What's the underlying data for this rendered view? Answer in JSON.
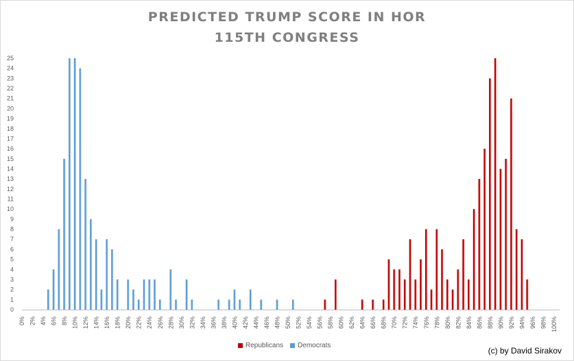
{
  "chart_data": {
    "type": "bar",
    "title_lines": [
      "PREDICTED TRUMP SCORE IN HOR",
      "115TH CONGRESS"
    ],
    "xlabel": "",
    "ylabel": "",
    "ylim": [
      0,
      25
    ],
    "yticks": [
      0,
      1,
      2,
      3,
      4,
      5,
      6,
      7,
      8,
      9,
      10,
      11,
      12,
      13,
      14,
      15,
      16,
      17,
      18,
      19,
      20,
      21,
      22,
      23,
      24,
      25
    ],
    "xticks": [
      "0%",
      "2%",
      "4%",
      "6%",
      "8%",
      "10%",
      "12%",
      "14%",
      "16%",
      "18%",
      "20%",
      "22%",
      "24%",
      "26%",
      "28%",
      "30%",
      "32%",
      "34%",
      "36%",
      "38%",
      "40%",
      "42%",
      "44%",
      "46%",
      "48%",
      "50%",
      "52%",
      "54%",
      "56%",
      "58%",
      "60%",
      "62%",
      "64%",
      "66%",
      "68%",
      "70%",
      "72%",
      "74%",
      "76%",
      "78%",
      "80%",
      "82%",
      "84%",
      "86%",
      "88%",
      "90%",
      "92%",
      "94%",
      "96%",
      "98%",
      "100%"
    ],
    "grid": false,
    "legend_position": "bottom",
    "series": [
      {
        "name": "Republicans",
        "color": "#c00000",
        "points": [
          [
            57,
            1
          ],
          [
            59,
            3
          ],
          [
            64,
            1
          ],
          [
            66,
            1
          ],
          [
            68,
            1
          ],
          [
            69,
            5
          ],
          [
            70,
            4
          ],
          [
            71,
            4
          ],
          [
            72,
            3
          ],
          [
            73,
            7
          ],
          [
            74,
            3
          ],
          [
            75,
            5
          ],
          [
            76,
            8
          ],
          [
            77,
            2
          ],
          [
            78,
            8
          ],
          [
            79,
            6
          ],
          [
            80,
            3
          ],
          [
            81,
            2
          ],
          [
            82,
            4
          ],
          [
            83,
            7
          ],
          [
            84,
            3
          ],
          [
            85,
            10
          ],
          [
            86,
            13
          ],
          [
            87,
            16
          ],
          [
            88,
            23
          ],
          [
            89,
            25
          ],
          [
            90,
            14
          ],
          [
            91,
            15
          ],
          [
            92,
            21
          ],
          [
            93,
            8
          ],
          [
            94,
            7
          ],
          [
            95,
            3
          ]
        ]
      },
      {
        "name": "Democrats",
        "color": "#5b9bd5",
        "points": [
          [
            5,
            2
          ],
          [
            6,
            4
          ],
          [
            7,
            8
          ],
          [
            8,
            15
          ],
          [
            9,
            25
          ],
          [
            10,
            25
          ],
          [
            11,
            24
          ],
          [
            12,
            13
          ],
          [
            13,
            9
          ],
          [
            14,
            7
          ],
          [
            15,
            2
          ],
          [
            16,
            7
          ],
          [
            17,
            6
          ],
          [
            18,
            3
          ],
          [
            19,
            0
          ],
          [
            20,
            3
          ],
          [
            21,
            2
          ],
          [
            22,
            1
          ],
          [
            23,
            3
          ],
          [
            24,
            3
          ],
          [
            25,
            3
          ],
          [
            26,
            1
          ],
          [
            28,
            4
          ],
          [
            29,
            1
          ],
          [
            31,
            3
          ],
          [
            32,
            1
          ],
          [
            37,
            1
          ],
          [
            39,
            1
          ],
          [
            40,
            2
          ],
          [
            41,
            1
          ],
          [
            43,
            2
          ],
          [
            45,
            1
          ],
          [
            48,
            1
          ],
          [
            51,
            1
          ]
        ]
      }
    ]
  },
  "credit": "(c) by David Sirakov"
}
